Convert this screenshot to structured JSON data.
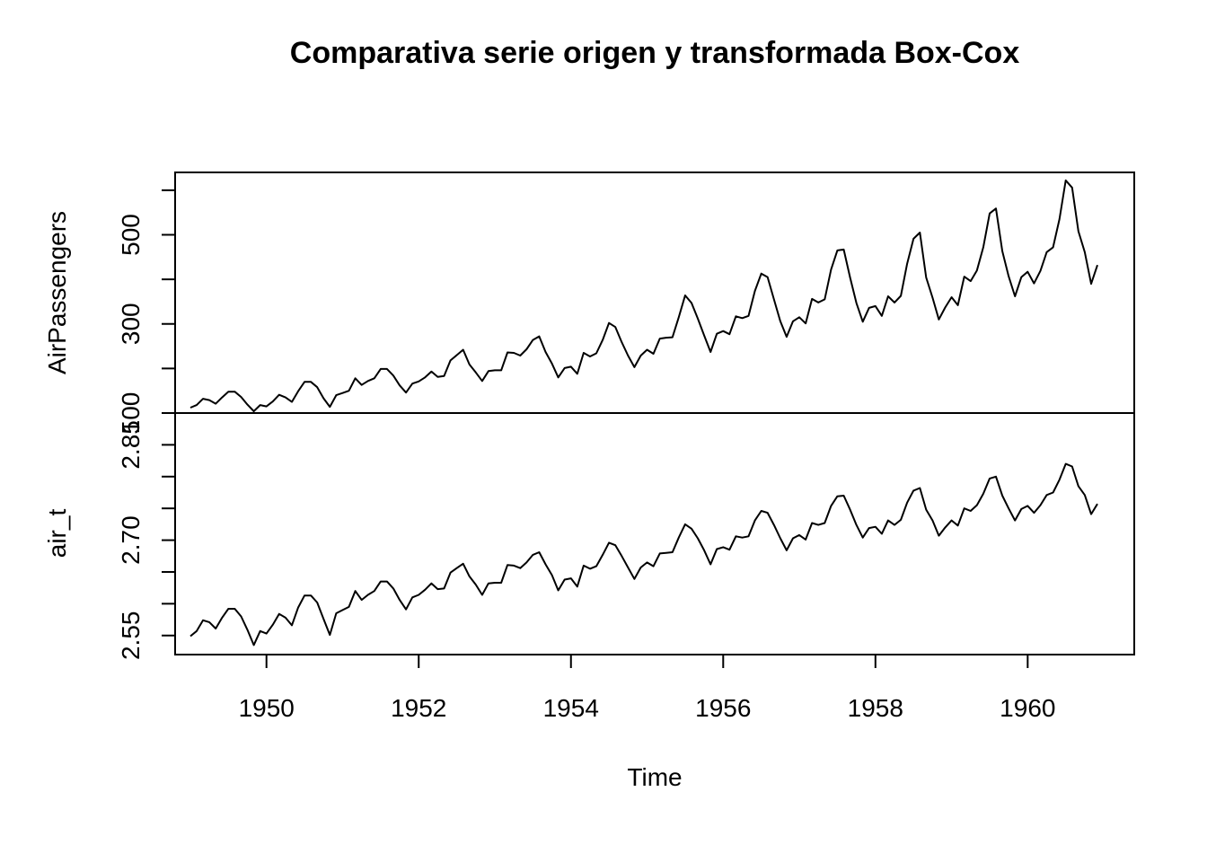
{
  "chart_data": {
    "type": "line",
    "title": "Comparativa serie origen y transformada Box-Cox",
    "xlabel": "Time",
    "xlim": [
      1948.8,
      1961.4
    ],
    "x_ticks": [
      1950,
      1952,
      1954,
      1956,
      1958,
      1960
    ],
    "x_tick_labels": [
      "1950",
      "1952",
      "1954",
      "1956",
      "1958",
      "1960"
    ],
    "start": 1949,
    "frequency": 12,
    "panels": [
      {
        "ylabel": "AirPassengers",
        "ylim": [
          100,
          640
        ],
        "y_ticks": [
          100,
          200,
          300,
          400,
          500,
          600
        ],
        "y_tick_labels": [
          "100",
          "300",
          "500"
        ],
        "y_tick_label_values": [
          100,
          300,
          500
        ],
        "values": [
          112,
          118,
          132,
          129,
          121,
          135,
          148,
          148,
          136,
          119,
          104,
          118,
          115,
          126,
          141,
          135,
          125,
          149,
          170,
          170,
          158,
          133,
          114,
          140,
          145,
          150,
          178,
          163,
          172,
          178,
          199,
          199,
          184,
          162,
          146,
          166,
          171,
          180,
          193,
          181,
          183,
          218,
          230,
          242,
          209,
          191,
          172,
          194,
          196,
          196,
          236,
          235,
          229,
          243,
          264,
          272,
          237,
          211,
          180,
          201,
          204,
          188,
          235,
          227,
          234,
          264,
          302,
          293,
          259,
          229,
          203,
          229,
          242,
          233,
          267,
          269,
          270,
          315,
          364,
          347,
          312,
          274,
          237,
          278,
          284,
          277,
          317,
          313,
          318,
          374,
          413,
          405,
          355,
          306,
          271,
          306,
          315,
          301,
          356,
          348,
          355,
          422,
          465,
          467,
          404,
          347,
          305,
          336,
          340,
          318,
          362,
          348,
          363,
          435,
          491,
          505,
          404,
          359,
          310,
          337,
          360,
          342,
          406,
          396,
          420,
          472,
          548,
          559,
          463,
          407,
          362,
          405,
          417,
          391,
          419,
          461,
          472,
          535,
          622,
          606,
          508,
          461,
          390,
          432
        ]
      },
      {
        "ylabel": "air_t",
        "ylim": [
          2.52,
          2.9
        ],
        "y_ticks": [
          2.55,
          2.6,
          2.65,
          2.7,
          2.75,
          2.8,
          2.85
        ],
        "y_tick_labels": [
          "2.55",
          "2.70",
          "2.85"
        ],
        "y_tick_label_values": [
          2.55,
          2.7,
          2.85
        ],
        "values": [
          2.549,
          2.557,
          2.574,
          2.571,
          2.561,
          2.578,
          2.592,
          2.592,
          2.58,
          2.559,
          2.535,
          2.557,
          2.553,
          2.567,
          2.584,
          2.578,
          2.566,
          2.594,
          2.613,
          2.613,
          2.602,
          2.576,
          2.551,
          2.585,
          2.59,
          2.595,
          2.62,
          2.606,
          2.614,
          2.62,
          2.635,
          2.635,
          2.624,
          2.606,
          2.591,
          2.61,
          2.614,
          2.622,
          2.632,
          2.623,
          2.624,
          2.649,
          2.656,
          2.663,
          2.643,
          2.63,
          2.614,
          2.632,
          2.633,
          2.633,
          2.661,
          2.66,
          2.656,
          2.665,
          2.677,
          2.681,
          2.662,
          2.645,
          2.621,
          2.638,
          2.64,
          2.627,
          2.66,
          2.655,
          2.659,
          2.677,
          2.696,
          2.692,
          2.675,
          2.657,
          2.639,
          2.657,
          2.665,
          2.659,
          2.679,
          2.68,
          2.681,
          2.704,
          2.725,
          2.718,
          2.703,
          2.684,
          2.662,
          2.686,
          2.689,
          2.685,
          2.706,
          2.704,
          2.706,
          2.731,
          2.746,
          2.743,
          2.724,
          2.703,
          2.684,
          2.703,
          2.708,
          2.701,
          2.727,
          2.724,
          2.727,
          2.754,
          2.769,
          2.77,
          2.748,
          2.724,
          2.704,
          2.719,
          2.721,
          2.71,
          2.731,
          2.724,
          2.732,
          2.759,
          2.778,
          2.782,
          2.748,
          2.731,
          2.707,
          2.72,
          2.731,
          2.723,
          2.75,
          2.746,
          2.755,
          2.773,
          2.797,
          2.8,
          2.77,
          2.75,
          2.731,
          2.749,
          2.754,
          2.743,
          2.755,
          2.771,
          2.775,
          2.795,
          2.82,
          2.816,
          2.785,
          2.771,
          2.741,
          2.757
        ]
      }
    ]
  }
}
